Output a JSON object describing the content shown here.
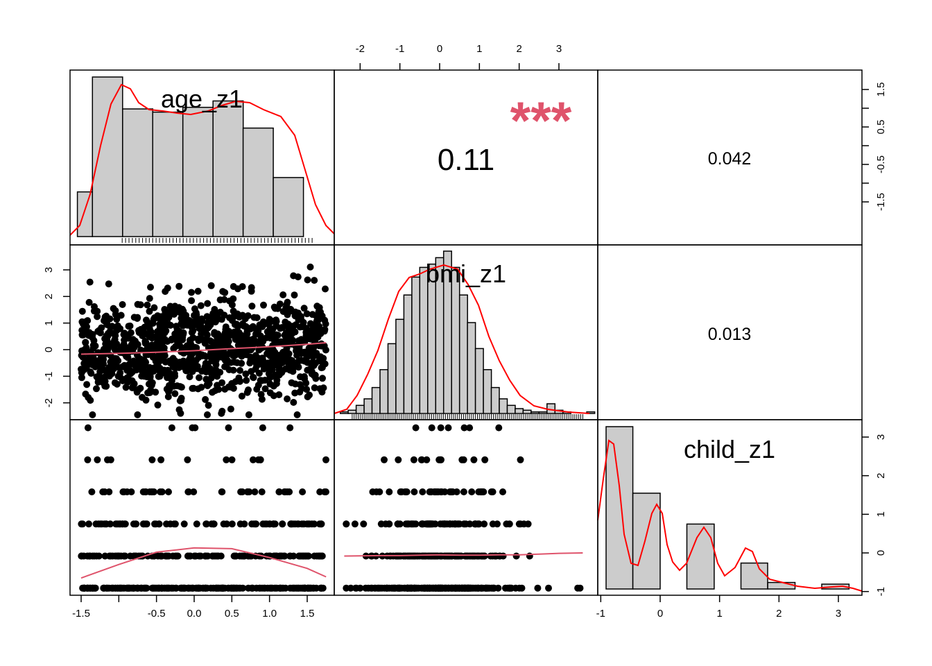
{
  "chart_data": {
    "type": "scatter",
    "variables": [
      "age_z1",
      "bmi_z1",
      "child_z1"
    ],
    "ticks": {
      "age_z1": [
        "-1.5",
        "-0.5",
        "0.0",
        "0.5",
        "1.0",
        "1.5"
      ],
      "bmi_z1_top": [
        "-2",
        "-1",
        "0",
        "1",
        "2",
        "3"
      ],
      "bmi_z1_left": [
        "-2",
        "-1",
        "0",
        "1",
        "2",
        "3"
      ],
      "age_z1_right": [
        "-1.5",
        "-0.5",
        "0.5",
        "1.5"
      ],
      "child_z1_bottom": [
        "-1",
        "0",
        "1",
        "2",
        "3"
      ],
      "child_z1_right": [
        "-1",
        "0",
        "1",
        "2",
        "3"
      ]
    },
    "correlations": [
      {
        "pair": [
          "age_z1",
          "bmi_z1"
        ],
        "value": "0.11",
        "stars": "***"
      },
      {
        "pair": [
          "age_z1",
          "child_z1"
        ],
        "value": "0.042",
        "stars": ""
      },
      {
        "pair": [
          "bmi_z1",
          "child_z1"
        ],
        "value": "0.013",
        "stars": ""
      }
    ],
    "histograms": {
      "age_z1": {
        "bins": [
          [
            -1.55,
            -1.35
          ],
          [
            -1.35,
            -0.95
          ],
          [
            -0.95,
            -0.55
          ],
          [
            -0.55,
            -0.15
          ],
          [
            -0.15,
            0.25
          ],
          [
            0.25,
            0.65
          ],
          [
            0.65,
            1.05
          ],
          [
            1.05,
            1.45
          ],
          [
            1.45,
            1.85
          ]
        ],
        "heights": [
          0.28,
          1.0,
          0.8,
          0.78,
          0.81,
          0.85,
          0.68,
          0.37,
          0
        ]
      },
      "bmi_z1": {
        "bins_start": -2.5,
        "bin_width": 0.2,
        "heights": [
          0.01,
          0.02,
          0.05,
          0.09,
          0.16,
          0.27,
          0.43,
          0.58,
          0.73,
          0.84,
          0.9,
          0.92,
          0.96,
          1.0,
          0.9,
          0.73,
          0.56,
          0.4,
          0.27,
          0.16,
          0.09,
          0.05,
          0.03,
          0.02,
          0.01,
          0.01,
          0.06,
          0.02,
          0.01,
          0,
          0,
          0.01
        ]
      },
      "child_z1": {
        "bins": [
          [
            -0.91,
            -0.46
          ],
          [
            -0.46,
            0
          ],
          [
            0.45,
            0.91
          ],
          [
            1.36,
            1.81
          ],
          [
            1.81,
            2.27
          ],
          [
            2.72,
            3.18
          ]
        ],
        "heights": [
          1.0,
          0.59,
          0.4,
          0.16,
          0.04,
          0.03
        ]
      }
    },
    "loess": {
      "bmi_vs_age": [
        [
          -1.5,
          -0.17
        ],
        [
          -1.0,
          -0.14
        ],
        [
          -0.5,
          -0.1
        ],
        [
          0,
          -0.04
        ],
        [
          0.5,
          0.04
        ],
        [
          1.0,
          0.11
        ],
        [
          1.5,
          0.2
        ],
        [
          1.75,
          0.26
        ]
      ],
      "child_vs_age": [
        [
          -1.5,
          -0.65
        ],
        [
          -1.0,
          -0.3
        ],
        [
          -0.5,
          0.02
        ],
        [
          0,
          0.13
        ],
        [
          0.5,
          0.11
        ],
        [
          1.0,
          -0.12
        ],
        [
          1.5,
          -0.4
        ],
        [
          1.75,
          -0.62
        ]
      ],
      "child_vs_bmi": [
        [
          -2.4,
          -0.08
        ],
        [
          -1.5,
          -0.07
        ],
        [
          -1,
          -0.07
        ],
        [
          -0.5,
          -0.06
        ],
        [
          0,
          -0.05
        ],
        [
          0.5,
          -0.06
        ],
        [
          1.0,
          -0.06
        ],
        [
          1.5,
          -0.05
        ],
        [
          2.0,
          -0.05
        ],
        [
          2.5,
          -0.03
        ],
        [
          3.0,
          -0.01
        ],
        [
          3.6,
          0.0
        ]
      ]
    },
    "child_levels": [
      -0.91,
      -0.08,
      0.75,
      1.58,
      2.41,
      3.24
    ],
    "grid": false,
    "colors": {
      "hist_fill": "#cccccc",
      "density": "#ff0000",
      "loess": "#DF536B",
      "stars": "#DF536B",
      "points": "#000000"
    }
  }
}
